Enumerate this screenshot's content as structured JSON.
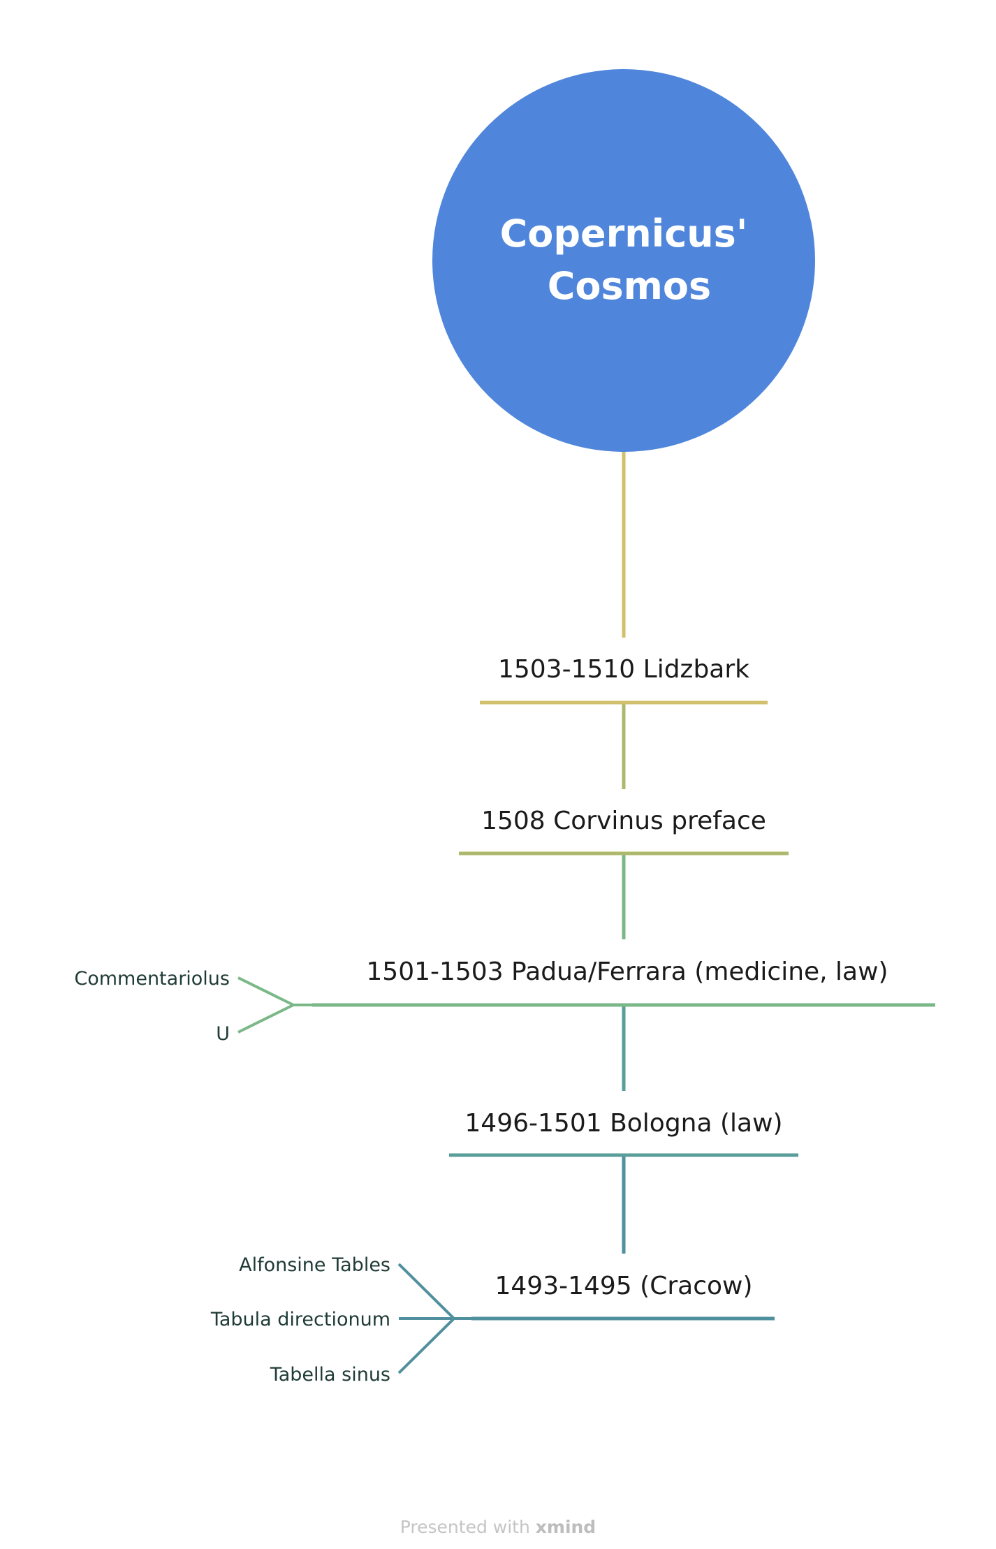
{
  "root": {
    "title_line1": "Copernicus'",
    "title_line2": "Cosmos",
    "color": "#4f86db"
  },
  "nodes": [
    {
      "label": "1503-1510 Lidzbark",
      "color": "#d2bf6c"
    },
    {
      "label": "1508 Corvinus preface",
      "color": "#adb86c"
    },
    {
      "label": "1501-1503 Padua/Ferrara (medicine, law)",
      "color": "#7bb887",
      "children": [
        "Commentariolus",
        "U"
      ]
    },
    {
      "label": "1496-1501 Bologna (law)",
      "color": "#5a9e9a"
    },
    {
      "label": "1493-1495 (Cracow)",
      "color": "#4f8f9e",
      "children": [
        "Alfonsine Tables",
        "Tabula directionum",
        "Tabella sinus"
      ]
    }
  ],
  "footer": {
    "prefix": "Presented with",
    "brand": "xmind"
  }
}
